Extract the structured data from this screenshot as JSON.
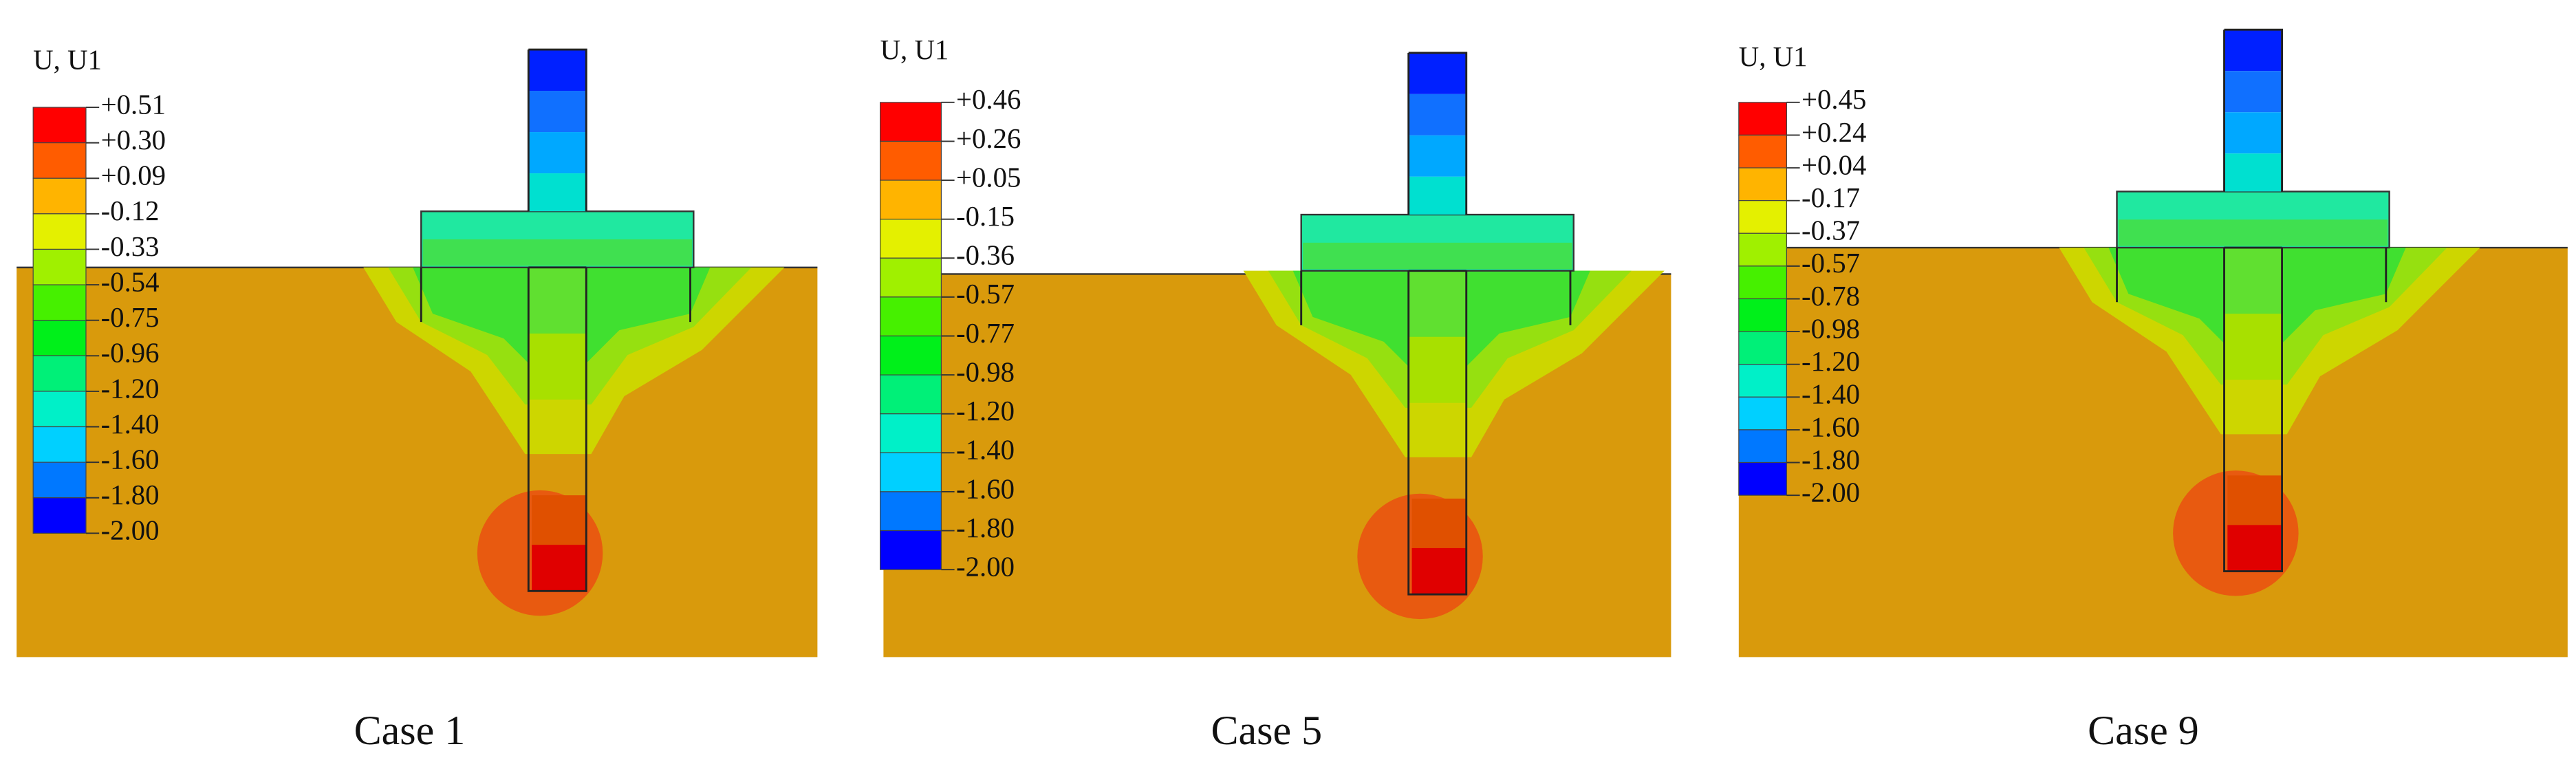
{
  "panels": [
    {
      "legend_title": "U, U1",
      "legend_labels": [
        "+0.51",
        "+0.30",
        "+0.09",
        "-0.12",
        "-0.33",
        "-0.54",
        "-0.75",
        "-0.96",
        "-1.20",
        "-1.40",
        "-1.60",
        "-1.80",
        "-2.00"
      ],
      "caption": "Case 1"
    },
    {
      "legend_title": "U, U1",
      "legend_labels": [
        "+0.46",
        "+0.26",
        "+0.05",
        "-0.15",
        "-0.36",
        "-0.57",
        "-0.77",
        "-0.98",
        "-1.20",
        "-1.40",
        "-1.60",
        "-1.80",
        "-2.00"
      ],
      "caption": "Case 5"
    },
    {
      "legend_title": "U, U1",
      "legend_labels": [
        "+0.45",
        "+0.24",
        "+0.04",
        "-0.17",
        "-0.37",
        "-0.57",
        "-0.78",
        "-0.98",
        "-1.20",
        "-1.40",
        "-1.60",
        "-1.80",
        "-2.00"
      ],
      "caption": "Case 9"
    }
  ]
}
